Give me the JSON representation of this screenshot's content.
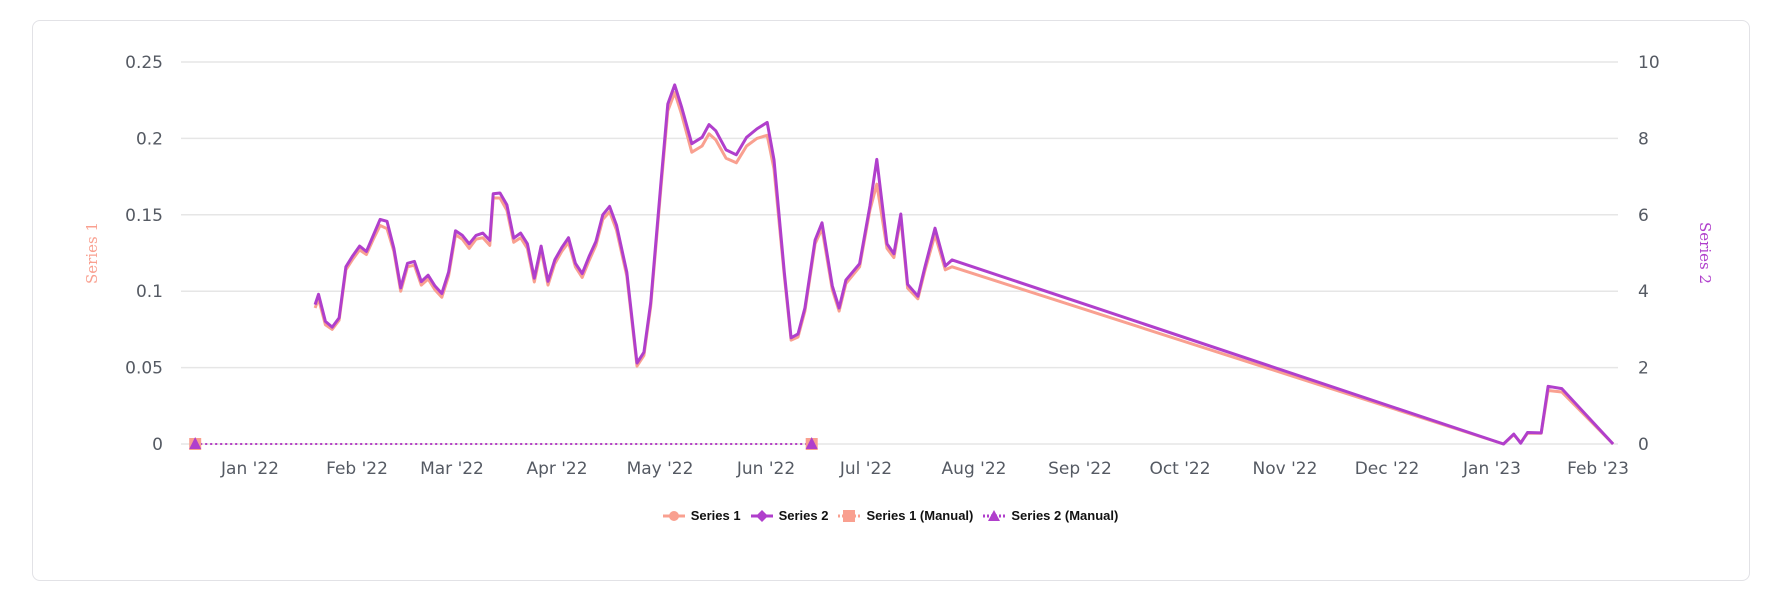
{
  "chart_data": {
    "type": "line",
    "title": "",
    "xlabel": "",
    "ylabel": "Series 1",
    "ylabel_right": "Series 2",
    "ylim": [
      0,
      0.25
    ],
    "ylim_right": [
      0,
      10
    ],
    "grid": true,
    "legend_position": "bottom",
    "x_ticks": [
      "Jan '22",
      "Feb '22",
      "Mar '22",
      "Apr '22",
      "May '22",
      "Jun '22",
      "Jul '22",
      "Aug '22",
      "Sep '22",
      "Oct '22",
      "Nov '22",
      "Dec '22",
      "Jan '23",
      "Feb '23"
    ],
    "y_ticks_left": [
      "0",
      "0.05",
      "0.1",
      "0.15",
      "0.2",
      "0.25"
    ],
    "y_ticks_right": [
      "0",
      "2",
      "4",
      "6",
      "8",
      "10"
    ],
    "series": [
      {
        "name": "Series 1",
        "axis": "left",
        "color": "#f9a090",
        "marker": "circle",
        "points": [
          [
            "2022-01-20",
            0.089
          ],
          [
            "2022-01-21",
            0.095
          ],
          [
            "2022-01-23",
            0.078
          ],
          [
            "2022-01-25",
            0.075
          ],
          [
            "2022-01-27",
            0.081
          ],
          [
            "2022-01-29",
            0.114
          ],
          [
            "2022-01-31",
            0.121
          ],
          [
            "2022-02-02",
            0.127
          ],
          [
            "2022-02-04",
            0.124
          ],
          [
            "2022-02-06",
            0.134
          ],
          [
            "2022-02-08",
            0.143
          ],
          [
            "2022-02-10",
            0.141
          ],
          [
            "2022-02-12",
            0.126
          ],
          [
            "2022-02-14",
            0.1
          ],
          [
            "2022-02-16",
            0.116
          ],
          [
            "2022-02-18",
            0.117
          ],
          [
            "2022-02-20",
            0.104
          ],
          [
            "2022-02-22",
            0.108
          ],
          [
            "2022-02-24",
            0.101
          ],
          [
            "2022-02-26",
            0.096
          ],
          [
            "2022-02-28",
            0.11
          ],
          [
            "2022-03-02",
            0.137
          ],
          [
            "2022-03-04",
            0.134
          ],
          [
            "2022-03-06",
            0.128
          ],
          [
            "2022-03-08",
            0.134
          ],
          [
            "2022-03-10",
            0.135
          ],
          [
            "2022-03-12",
            0.13
          ],
          [
            "2022-03-13",
            0.161
          ],
          [
            "2022-03-15",
            0.161
          ],
          [
            "2022-03-17",
            0.153
          ],
          [
            "2022-03-19",
            0.132
          ],
          [
            "2022-03-21",
            0.135
          ],
          [
            "2022-03-23",
            0.128
          ],
          [
            "2022-03-25",
            0.106
          ],
          [
            "2022-03-27",
            0.127
          ],
          [
            "2022-03-29",
            0.104
          ],
          [
            "2022-03-31",
            0.118
          ],
          [
            "2022-04-02",
            0.126
          ],
          [
            "2022-04-04",
            0.132
          ],
          [
            "2022-04-06",
            0.116
          ],
          [
            "2022-04-08",
            0.109
          ],
          [
            "2022-04-10",
            0.12
          ],
          [
            "2022-04-12",
            0.13
          ],
          [
            "2022-04-14",
            0.147
          ],
          [
            "2022-04-16",
            0.152
          ],
          [
            "2022-04-18",
            0.14
          ],
          [
            "2022-04-21",
            0.11
          ],
          [
            "2022-04-24",
            0.051
          ],
          [
            "2022-04-26",
            0.058
          ],
          [
            "2022-04-28",
            0.09
          ],
          [
            "2022-05-01",
            0.168
          ],
          [
            "2022-05-03",
            0.218
          ],
          [
            "2022-05-05",
            0.23
          ],
          [
            "2022-05-07",
            0.216
          ],
          [
            "2022-05-10",
            0.191
          ],
          [
            "2022-05-13",
            0.195
          ],
          [
            "2022-05-15",
            0.203
          ],
          [
            "2022-05-17",
            0.199
          ],
          [
            "2022-05-20",
            0.187
          ],
          [
            "2022-05-23",
            0.184
          ],
          [
            "2022-05-26",
            0.195
          ],
          [
            "2022-05-29",
            0.2
          ],
          [
            "2022-06-01",
            0.202
          ],
          [
            "2022-06-03",
            0.18
          ],
          [
            "2022-06-06",
            0.11
          ],
          [
            "2022-06-08",
            0.068
          ],
          [
            "2022-06-10",
            0.07
          ],
          [
            "2022-06-12",
            0.087
          ],
          [
            "2022-06-15",
            0.131
          ],
          [
            "2022-06-17",
            0.141
          ],
          [
            "2022-06-20",
            0.101
          ],
          [
            "2022-06-22",
            0.087
          ],
          [
            "2022-06-24",
            0.105
          ],
          [
            "2022-06-28",
            0.116
          ],
          [
            "2022-07-01",
            0.153
          ],
          [
            "2022-07-03",
            0.17
          ],
          [
            "2022-07-06",
            0.128
          ],
          [
            "2022-07-08",
            0.122
          ],
          [
            "2022-07-10",
            0.148
          ],
          [
            "2022-07-12",
            0.102
          ],
          [
            "2022-07-15",
            0.095
          ],
          [
            "2022-07-17",
            0.113
          ],
          [
            "2022-07-20",
            0.137
          ],
          [
            "2022-07-23",
            0.114
          ],
          [
            "2022-07-25",
            0.116
          ],
          [
            "2023-01-02",
            0.0
          ],
          [
            "2023-01-05",
            0.006
          ],
          [
            "2023-01-07",
            0.001
          ],
          [
            "2023-01-09",
            0.007
          ],
          [
            "2023-01-13",
            0.007
          ],
          [
            "2023-01-15",
            0.035
          ],
          [
            "2023-01-19",
            0.034
          ],
          [
            "2023-02-03",
            0.0
          ]
        ]
      },
      {
        "name": "Series 2",
        "axis": "right",
        "color": "#b03fcc",
        "marker": "diamond",
        "points": [
          [
            "2022-01-20",
            3.65
          ],
          [
            "2022-01-21",
            3.92
          ],
          [
            "2022-01-23",
            3.21
          ],
          [
            "2022-01-25",
            3.06
          ],
          [
            "2022-01-27",
            3.3
          ],
          [
            "2022-01-29",
            4.64
          ],
          [
            "2022-01-31",
            4.93
          ],
          [
            "2022-02-02",
            5.18
          ],
          [
            "2022-02-04",
            5.04
          ],
          [
            "2022-02-06",
            5.46
          ],
          [
            "2022-02-08",
            5.88
          ],
          [
            "2022-02-10",
            5.83
          ],
          [
            "2022-02-12",
            5.12
          ],
          [
            "2022-02-14",
            4.09
          ],
          [
            "2022-02-16",
            4.73
          ],
          [
            "2022-02-18",
            4.78
          ],
          [
            "2022-02-20",
            4.25
          ],
          [
            "2022-02-22",
            4.42
          ],
          [
            "2022-02-24",
            4.14
          ],
          [
            "2022-02-26",
            3.94
          ],
          [
            "2022-02-28",
            4.5
          ],
          [
            "2022-03-02",
            5.58
          ],
          [
            "2022-03-04",
            5.46
          ],
          [
            "2022-03-06",
            5.24
          ],
          [
            "2022-03-08",
            5.46
          ],
          [
            "2022-03-10",
            5.52
          ],
          [
            "2022-03-12",
            5.33
          ],
          [
            "2022-03-13",
            6.55
          ],
          [
            "2022-03-15",
            6.57
          ],
          [
            "2022-03-17",
            6.26
          ],
          [
            "2022-03-19",
            5.39
          ],
          [
            "2022-03-21",
            5.52
          ],
          [
            "2022-03-23",
            5.24
          ],
          [
            "2022-03-25",
            4.34
          ],
          [
            "2022-03-27",
            5.18
          ],
          [
            "2022-03-29",
            4.26
          ],
          [
            "2022-03-31",
            4.82
          ],
          [
            "2022-04-02",
            5.14
          ],
          [
            "2022-04-04",
            5.4
          ],
          [
            "2022-04-06",
            4.73
          ],
          [
            "2022-04-08",
            4.46
          ],
          [
            "2022-04-10",
            4.91
          ],
          [
            "2022-04-12",
            5.3
          ],
          [
            "2022-04-14",
            6.0
          ],
          [
            "2022-04-16",
            6.22
          ],
          [
            "2022-04-18",
            5.73
          ],
          [
            "2022-04-21",
            4.5
          ],
          [
            "2022-04-24",
            2.12
          ],
          [
            "2022-04-26",
            2.4
          ],
          [
            "2022-04-28",
            3.7
          ],
          [
            "2022-05-01",
            6.86
          ],
          [
            "2022-05-03",
            8.9
          ],
          [
            "2022-05-05",
            9.4
          ],
          [
            "2022-05-07",
            8.83
          ],
          [
            "2022-05-10",
            7.86
          ],
          [
            "2022-05-13",
            8.03
          ],
          [
            "2022-05-15",
            8.36
          ],
          [
            "2022-05-17",
            8.2
          ],
          [
            "2022-05-20",
            7.7
          ],
          [
            "2022-05-23",
            7.57
          ],
          [
            "2022-05-26",
            8.03
          ],
          [
            "2022-05-29",
            8.25
          ],
          [
            "2022-06-01",
            8.42
          ],
          [
            "2022-06-03",
            7.44
          ],
          [
            "2022-06-06",
            4.5
          ],
          [
            "2022-06-08",
            2.78
          ],
          [
            "2022-06-10",
            2.88
          ],
          [
            "2022-06-12",
            3.56
          ],
          [
            "2022-06-15",
            5.34
          ],
          [
            "2022-06-17",
            5.79
          ],
          [
            "2022-06-20",
            4.14
          ],
          [
            "2022-06-22",
            3.56
          ],
          [
            "2022-06-24",
            4.29
          ],
          [
            "2022-06-28",
            4.72
          ],
          [
            "2022-07-01",
            6.23
          ],
          [
            "2022-07-03",
            7.45
          ],
          [
            "2022-07-06",
            5.24
          ],
          [
            "2022-07-08",
            4.98
          ],
          [
            "2022-07-10",
            6.02
          ],
          [
            "2022-07-12",
            4.18
          ],
          [
            "2022-07-15",
            3.87
          ],
          [
            "2022-07-17",
            4.61
          ],
          [
            "2022-07-20",
            5.65
          ],
          [
            "2022-07-23",
            4.66
          ],
          [
            "2022-07-25",
            4.82
          ],
          [
            "2023-01-02",
            0.0
          ],
          [
            "2023-01-05",
            0.26
          ],
          [
            "2023-01-07",
            0.02
          ],
          [
            "2023-01-09",
            0.3
          ],
          [
            "2023-01-13",
            0.29
          ],
          [
            "2023-01-15",
            1.51
          ],
          [
            "2023-01-19",
            1.45
          ],
          [
            "2023-02-03",
            0.0
          ]
        ]
      },
      {
        "name": "Series 1 (Manual)",
        "axis": "left",
        "color": "#f9a090",
        "marker": "square",
        "dashed": true,
        "points": [
          [
            "2021-12-16",
            0
          ],
          [
            "2022-06-14",
            0
          ]
        ]
      },
      {
        "name": "Series 2 (Manual)",
        "axis": "right",
        "color": "#b03fcc",
        "marker": "triangle",
        "dashed": true,
        "points": [
          [
            "2021-12-16",
            0
          ],
          [
            "2022-06-14",
            0
          ]
        ]
      }
    ]
  },
  "axes": {
    "left_title": "Series 1",
    "right_title": "Series 2",
    "left_ticks": [
      "0",
      "0.05",
      "0.1",
      "0.15",
      "0.2",
      "0.25"
    ],
    "right_ticks": [
      "0",
      "2",
      "4",
      "6",
      "8",
      "10"
    ],
    "x_ticks": [
      "Jan '22",
      "Feb '22",
      "Mar '22",
      "Apr '22",
      "May '22",
      "Jun '22",
      "Jul '22",
      "Aug '22",
      "Sep '22",
      "Oct '22",
      "Nov '22",
      "Dec '22",
      "Jan '23",
      "Feb '23"
    ]
  },
  "legend": {
    "items": [
      {
        "label": "Series 1",
        "color": "#f9a090",
        "symbol": "circle"
      },
      {
        "label": "Series 2",
        "color": "#b03fcc",
        "symbol": "diamond"
      },
      {
        "label": "Series 1 (Manual)",
        "color": "#f9a090",
        "symbol": "square"
      },
      {
        "label": "Series 2 (Manual)",
        "color": "#b03fcc",
        "symbol": "triangle"
      }
    ]
  }
}
